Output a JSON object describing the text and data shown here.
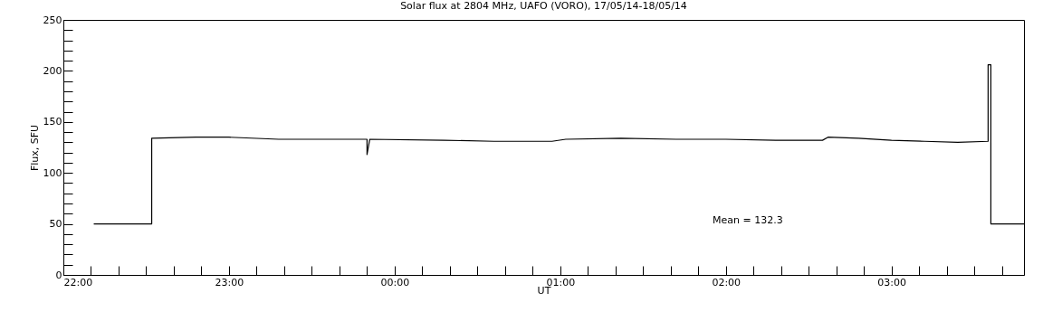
{
  "chart_data": {
    "type": "line",
    "title": "Solar flux at 2804 MHz, UAFO (VORO),  17/05/14-18/05/14",
    "xlabel": "UT",
    "ylabel": "Flux, SFU",
    "annotations": [
      "Mean =  132.3"
    ],
    "x": [
      "--05-17T22:11",
      "--05-17T22:32",
      "--05-17T22:32",
      "--05-17T22:48",
      "--05-17T23:00",
      "--05-17T23:18",
      "--05-17T23:36",
      "--05-17T23:50",
      "--05-17T23:50",
      "--05-17T23:51",
      "--05-18T00:18",
      "--05-18T00:36",
      "--05-18T00:57",
      "--05-18T01:02",
      "--05-18T01:22",
      "--05-18T01:42",
      "--05-18T02:00",
      "--05-18T02:18",
      "--05-18T02:35",
      "--05-18T02:37",
      "--05-18T02:48",
      "--05-18T03:00",
      "--05-18T03:12",
      "--05-18T03:24",
      "--05-18T03:35",
      "--05-18T03:35",
      "--05-18T03:36",
      "--05-18T03:36",
      "--05-18T03:48"
    ],
    "series": [
      {
        "color": "#000000",
        "values": [
          50,
          50,
          134,
          135,
          135,
          133,
          133,
          133,
          118,
          133,
          132,
          131,
          131,
          133,
          134,
          133,
          133,
          132,
          132,
          135,
          134,
          132,
          131,
          130,
          131,
          206,
          206,
          50,
          50
        ]
      }
    ],
    "xlim": [
      "--05-17T22:00",
      "--05-18T03:48"
    ],
    "xticks": [
      {
        "value": "--05-17T22:00",
        "label": "22:00"
      },
      {
        "value": "--05-17T22:10",
        "label": null
      },
      {
        "value": "--05-17T22:20",
        "label": null
      },
      {
        "value": "--05-17T22:30",
        "label": null
      },
      {
        "value": "--05-17T22:40",
        "label": null
      },
      {
        "value": "--05-17T22:50",
        "label": null
      },
      {
        "value": "--05-17T23:00",
        "label": "23:00"
      },
      {
        "value": "--05-17T23:10",
        "label": null
      },
      {
        "value": "--05-17T23:20",
        "label": null
      },
      {
        "value": "--05-17T23:30",
        "label": null
      },
      {
        "value": "--05-17T23:40",
        "label": null
      },
      {
        "value": "--05-17T23:50",
        "label": null
      },
      {
        "value": "--05-18T00:00",
        "label": "00:00"
      },
      {
        "value": "--05-18T00:10",
        "label": null
      },
      {
        "value": "--05-18T00:20",
        "label": null
      },
      {
        "value": "--05-18T00:30",
        "label": null
      },
      {
        "value": "--05-18T00:40",
        "label": null
      },
      {
        "value": "--05-18T00:50",
        "label": null
      },
      {
        "value": "--05-18T01:00",
        "label": "01:00"
      },
      {
        "value": "--05-18T01:10",
        "label": null
      },
      {
        "value": "--05-18T01:20",
        "label": null
      },
      {
        "value": "--05-18T01:30",
        "label": null
      },
      {
        "value": "--05-18T01:40",
        "label": null
      },
      {
        "value": "--05-18T01:50",
        "label": null
      },
      {
        "value": "--05-18T02:00",
        "label": "02:00"
      },
      {
        "value": "--05-18T02:10",
        "label": null
      },
      {
        "value": "--05-18T02:20",
        "label": null
      },
      {
        "value": "--05-18T02:30",
        "label": null
      },
      {
        "value": "--05-18T02:40",
        "label": null
      },
      {
        "value": "--05-18T02:50",
        "label": null
      },
      {
        "value": "--05-18T03:00",
        "label": "03:00"
      },
      {
        "value": "--05-18T03:10",
        "label": null
      },
      {
        "value": "--05-18T03:20",
        "label": null
      },
      {
        "value": "--05-18T03:30",
        "label": null
      },
      {
        "value": "--05-18T03:40",
        "label": null
      }
    ],
    "ylim": [
      0,
      250
    ],
    "yticks": [
      0,
      {
        "value": 10,
        "label": null
      },
      {
        "value": 20,
        "label": null
      },
      {
        "value": 30,
        "label": null
      },
      {
        "value": 40,
        "label": null
      },
      50,
      {
        "value": 60,
        "label": null
      },
      {
        "value": 70,
        "label": null
      },
      {
        "value": 80,
        "label": null
      },
      {
        "value": 90,
        "label": null
      },
      100,
      {
        "value": 110,
        "label": null
      },
      {
        "value": 120,
        "label": null
      },
      {
        "value": 130,
        "label": null
      },
      {
        "value": 140,
        "label": null
      },
      150,
      {
        "value": 160,
        "label": null
      },
      {
        "value": 170,
        "label": null
      },
      {
        "value": 180,
        "label": null
      },
      {
        "value": 190,
        "label": null
      },
      200,
      {
        "value": 210,
        "label": null
      },
      {
        "value": 220,
        "label": null
      },
      {
        "value": 230,
        "label": null
      },
      {
        "value": 240,
        "label": null
      },
      250
    ],
    "grid": false,
    "marker": "none",
    "line_style": "solid"
  }
}
